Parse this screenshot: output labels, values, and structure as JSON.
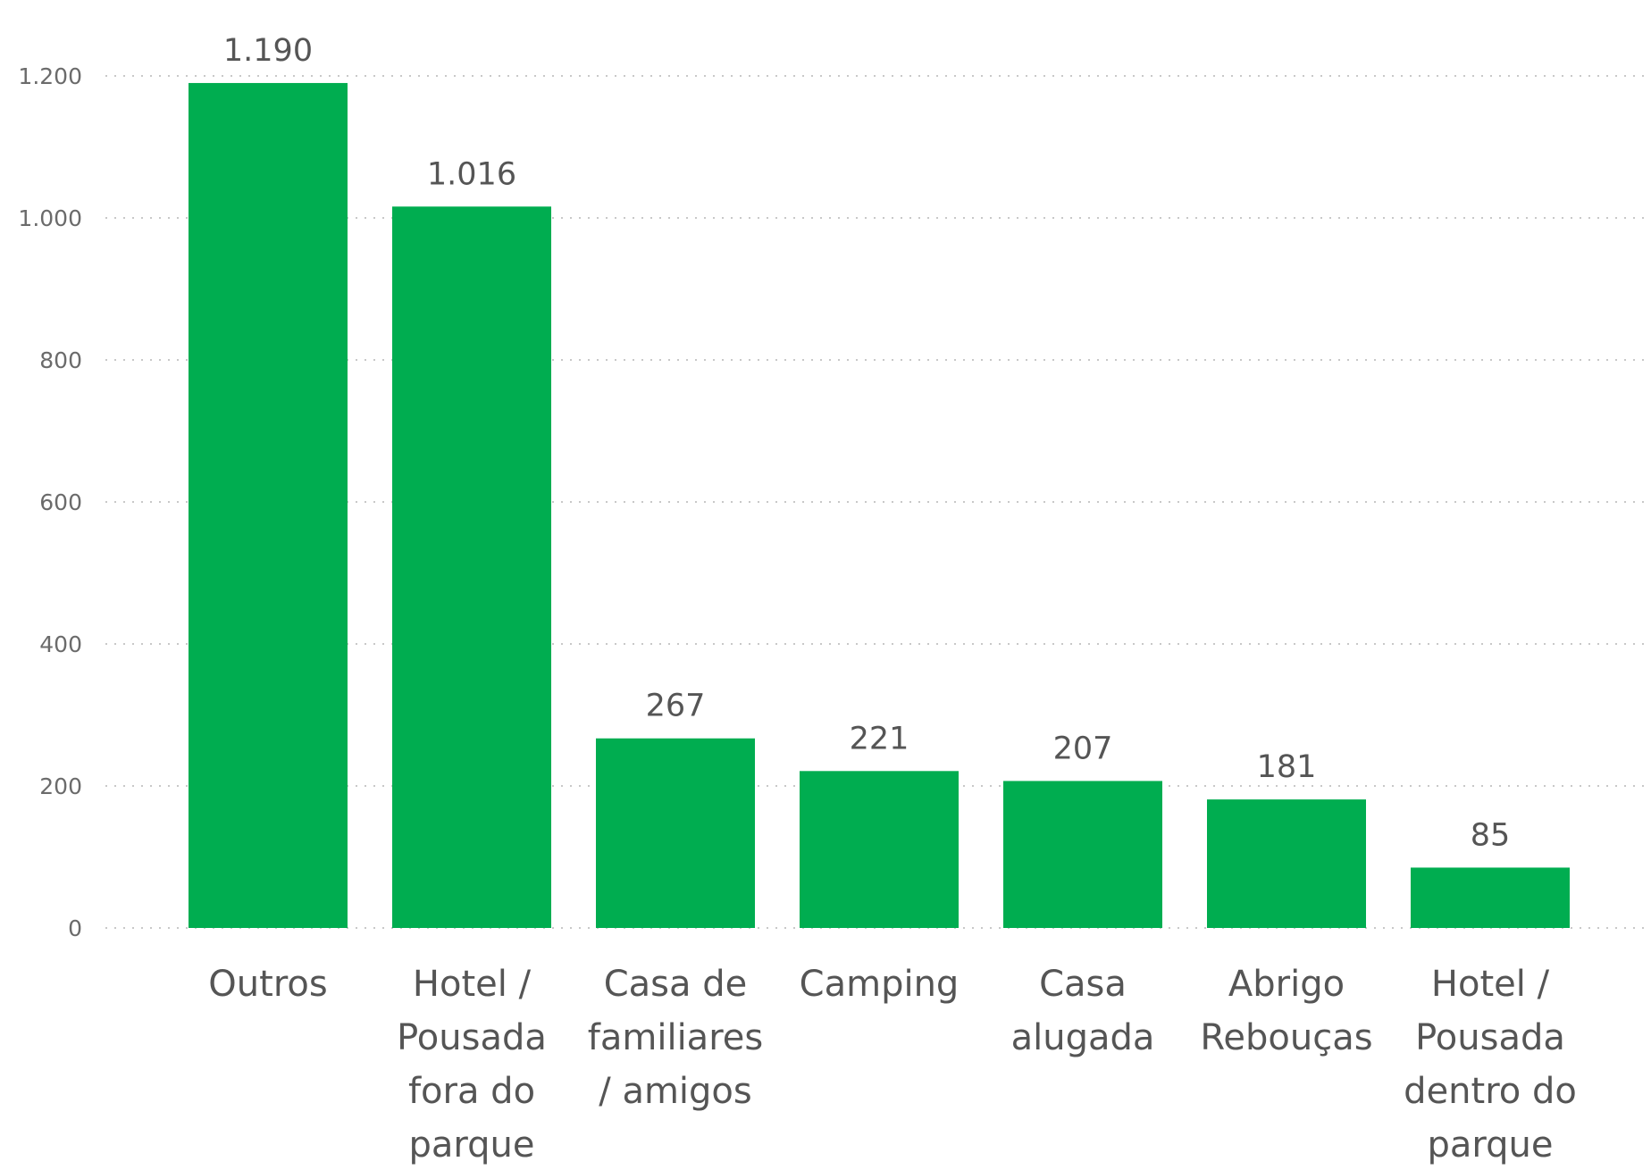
{
  "chart_data": {
    "type": "bar",
    "title": "",
    "xlabel": "",
    "ylabel": "",
    "categories": [
      [
        "Outros"
      ],
      [
        "Hotel /",
        "Pousada",
        "fora do",
        "parque"
      ],
      [
        "Casa de",
        "familiares",
        "/ amigos"
      ],
      [
        "Camping"
      ],
      [
        "Casa",
        "alugada"
      ],
      [
        "Abrigo",
        "Rebouças"
      ],
      [
        "Hotel /",
        "Pousada",
        "dentro do",
        "parque"
      ]
    ],
    "values": [
      1190,
      1016,
      267,
      221,
      207,
      181,
      85
    ],
    "data_labels": [
      "1.190",
      "1.016",
      "267",
      "221",
      "207",
      "181",
      "85"
    ],
    "ylim": [
      0,
      1200
    ],
    "yticks": [
      0,
      200,
      400,
      600,
      800,
      1000,
      1200
    ],
    "ytick_labels": [
      "0",
      "200",
      "400",
      "600",
      "800",
      "1.000",
      "1.200"
    ],
    "grid": true,
    "legend": "none",
    "colors": {
      "bar": "#00AD50",
      "grid": "#c8c8c8",
      "text": "#555555"
    }
  }
}
